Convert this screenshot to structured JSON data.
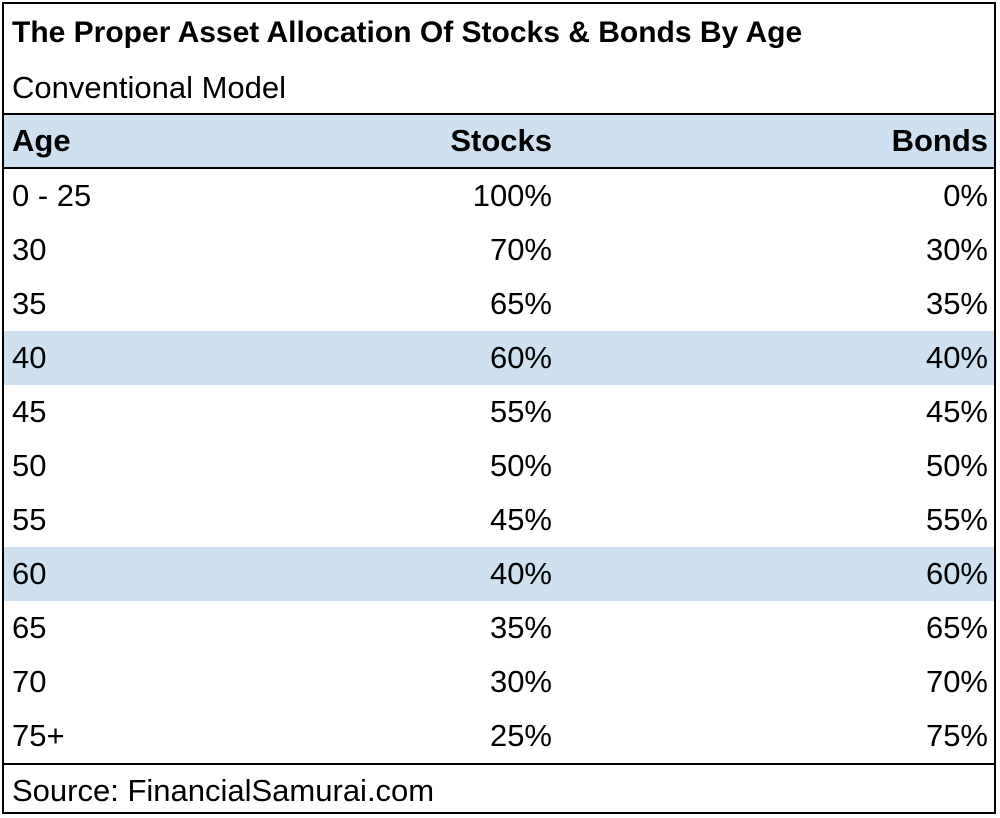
{
  "title": "The Proper Asset Allocation Of Stocks & Bonds By Age",
  "subtitle": "Conventional Model",
  "table": {
    "header": [
      "Age",
      "Stocks",
      "Bonds"
    ],
    "rows": [
      [
        "0 - 25",
        "100%",
        "0%"
      ],
      [
        "30",
        "70%",
        "30%"
      ],
      [
        "35",
        "65%",
        "35%"
      ],
      [
        "40",
        "60%",
        "40%"
      ],
      [
        "45",
        "55%",
        "45%"
      ],
      [
        "50",
        "50%",
        "50%"
      ],
      [
        "55",
        "45%",
        "55%"
      ],
      [
        "60",
        "40%",
        "60%"
      ],
      [
        "65",
        "35%",
        "65%"
      ],
      [
        "70",
        "30%",
        "70%"
      ],
      [
        "75+",
        "25%",
        "75%"
      ]
    ]
  },
  "source": "Source: FinancialSamurai.com"
}
